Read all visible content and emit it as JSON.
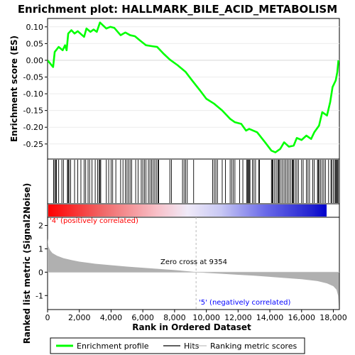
{
  "chart_data": {
    "type": "line",
    "title": "Enrichment plot: HALLMARK_BILE_ACID_METABOLISM",
    "es_panel": {
      "ylabel": "Enrichment score (ES)",
      "yticks": [
        0.1,
        0.05,
        0.0,
        -0.05,
        -0.1,
        -0.15,
        -0.2,
        -0.25
      ],
      "ylim": [
        -0.295,
        0.125
      ],
      "es_curve": [
        {
          "x": 0,
          "y": 0.0
        },
        {
          "x": 350,
          "y": -0.02
        },
        {
          "x": 450,
          "y": 0.025
        },
        {
          "x": 700,
          "y": 0.04
        },
        {
          "x": 950,
          "y": 0.03
        },
        {
          "x": 1100,
          "y": 0.045
        },
        {
          "x": 1200,
          "y": 0.03
        },
        {
          "x": 1300,
          "y": 0.08
        },
        {
          "x": 1500,
          "y": 0.09
        },
        {
          "x": 1700,
          "y": 0.08
        },
        {
          "x": 1900,
          "y": 0.087
        },
        {
          "x": 2300,
          "y": 0.07
        },
        {
          "x": 2450,
          "y": 0.095
        },
        {
          "x": 2700,
          "y": 0.085
        },
        {
          "x": 2900,
          "y": 0.092
        },
        {
          "x": 3100,
          "y": 0.085
        },
        {
          "x": 3300,
          "y": 0.113
        },
        {
          "x": 3700,
          "y": 0.095
        },
        {
          "x": 3950,
          "y": 0.1
        },
        {
          "x": 4200,
          "y": 0.097
        },
        {
          "x": 4600,
          "y": 0.075
        },
        {
          "x": 4900,
          "y": 0.083
        },
        {
          "x": 5200,
          "y": 0.075
        },
        {
          "x": 5500,
          "y": 0.072
        },
        {
          "x": 5800,
          "y": 0.06
        },
        {
          "x": 6200,
          "y": 0.045
        },
        {
          "x": 6600,
          "y": 0.042
        },
        {
          "x": 6900,
          "y": 0.04
        },
        {
          "x": 7300,
          "y": 0.02
        },
        {
          "x": 7700,
          "y": 0.002
        },
        {
          "x": 8200,
          "y": -0.015
        },
        {
          "x": 8700,
          "y": -0.035
        },
        {
          "x": 9100,
          "y": -0.06
        },
        {
          "x": 9600,
          "y": -0.09
        },
        {
          "x": 10000,
          "y": -0.115
        },
        {
          "x": 10500,
          "y": -0.13
        },
        {
          "x": 11000,
          "y": -0.15
        },
        {
          "x": 11500,
          "y": -0.175
        },
        {
          "x": 11800,
          "y": -0.185
        },
        {
          "x": 12200,
          "y": -0.19
        },
        {
          "x": 12500,
          "y": -0.21
        },
        {
          "x": 12700,
          "y": -0.205
        },
        {
          "x": 13200,
          "y": -0.215
        },
        {
          "x": 13700,
          "y": -0.245
        },
        {
          "x": 14100,
          "y": -0.27
        },
        {
          "x": 14350,
          "y": -0.275
        },
        {
          "x": 14650,
          "y": -0.265
        },
        {
          "x": 14900,
          "y": -0.245
        },
        {
          "x": 15200,
          "y": -0.258
        },
        {
          "x": 15500,
          "y": -0.255
        },
        {
          "x": 15700,
          "y": -0.232
        },
        {
          "x": 16000,
          "y": -0.238
        },
        {
          "x": 16300,
          "y": -0.225
        },
        {
          "x": 16600,
          "y": -0.235
        },
        {
          "x": 16800,
          "y": -0.215
        },
        {
          "x": 17100,
          "y": -0.195
        },
        {
          "x": 17300,
          "y": -0.155
        },
        {
          "x": 17600,
          "y": -0.165
        },
        {
          "x": 17800,
          "y": -0.125
        },
        {
          "x": 17950,
          "y": -0.08
        },
        {
          "x": 18150,
          "y": -0.06
        },
        {
          "x": 18250,
          "y": -0.035
        },
        {
          "x": 18320,
          "y": 0.0
        }
      ]
    },
    "hits": [
      380,
      450,
      520,
      560,
      700,
      900,
      1000,
      1250,
      1300,
      1350,
      1450,
      1700,
      1900,
      2100,
      2300,
      2400,
      2550,
      2650,
      2800,
      3000,
      3150,
      3250,
      3300,
      3350,
      3700,
      3850,
      4000,
      4100,
      4300,
      4600,
      4750,
      4900,
      5000,
      5100,
      5200,
      5300,
      5550,
      5700,
      5900,
      6000,
      6100,
      6200,
      6350,
      6450,
      6550,
      6650,
      6750,
      6850,
      6950,
      7000,
      7700,
      7800,
      8500,
      8600,
      8700,
      8800,
      9200,
      10400,
      10500,
      10600,
      10700,
      11000,
      11200,
      11500,
      11600,
      11700,
      11800,
      12100,
      12300,
      12550,
      12600,
      12650,
      12700,
      12750,
      12900,
      13000,
      13100,
      13300,
      13350,
      14100,
      14150,
      14200,
      14300,
      14400,
      14500,
      14550,
      14600,
      14700,
      14800,
      14900,
      15000,
      15100,
      15200,
      15300,
      15400,
      15450,
      15500,
      15600,
      15700,
      15800,
      16000,
      16100,
      16300,
      16400,
      16500,
      16700,
      16800,
      17000,
      17050,
      17100,
      17200,
      17300,
      17400,
      17500,
      17700,
      17850,
      17900,
      18000,
      18100,
      18150,
      18200,
      18250,
      18300
    ],
    "metric_panel": {
      "ylabel": "Ranked list metric (Signal2Noise)",
      "xlabel": "Rank in Ordered Dataset",
      "xticks": [
        0,
        2000,
        4000,
        6000,
        8000,
        10000,
        12000,
        14000,
        16000,
        18000
      ],
      "xtick_labels": [
        "0",
        "2,000",
        "4,000",
        "6,000",
        "8,000",
        "10,000",
        "12,000",
        "14,000",
        "16,000",
        "18,000"
      ],
      "yticks": [
        2,
        1,
        0,
        -1
      ],
      "ylim": [
        -1.6,
        2.35
      ],
      "metric_curve": [
        {
          "x": 0,
          "y": 1.45
        },
        {
          "x": 50,
          "y": 1.1
        },
        {
          "x": 150,
          "y": 0.95
        },
        {
          "x": 300,
          "y": 0.82
        },
        {
          "x": 600,
          "y": 0.7
        },
        {
          "x": 1000,
          "y": 0.6
        },
        {
          "x": 1500,
          "y": 0.52
        },
        {
          "x": 2000,
          "y": 0.45
        },
        {
          "x": 3000,
          "y": 0.36
        },
        {
          "x": 4000,
          "y": 0.3
        },
        {
          "x": 5000,
          "y": 0.24
        },
        {
          "x": 6000,
          "y": 0.19
        },
        {
          "x": 7000,
          "y": 0.14
        },
        {
          "x": 8000,
          "y": 0.09
        },
        {
          "x": 9000,
          "y": 0.03
        },
        {
          "x": 9354,
          "y": 0.0
        },
        {
          "x": 10000,
          "y": -0.03
        },
        {
          "x": 11000,
          "y": -0.07
        },
        {
          "x": 12000,
          "y": -0.11
        },
        {
          "x": 13000,
          "y": -0.15
        },
        {
          "x": 14000,
          "y": -0.2
        },
        {
          "x": 15000,
          "y": -0.25
        },
        {
          "x": 16000,
          "y": -0.3
        },
        {
          "x": 17000,
          "y": -0.38
        },
        {
          "x": 17600,
          "y": -0.48
        },
        {
          "x": 18000,
          "y": -0.6
        },
        {
          "x": 18200,
          "y": -0.75
        },
        {
          "x": 18300,
          "y": -1.0
        },
        {
          "x": 18350,
          "y": -1.55
        }
      ],
      "zero_cross_label": "Zero cross at 9354",
      "zero_cross_rank": 9354,
      "pos_label": "'4' (positively correlated)",
      "neg_label": "'5' (negatively correlated)"
    },
    "xlim": [
      0,
      18380
    ],
    "colors": {
      "es_line": "#00ff00",
      "pos_label": "#ff0000",
      "neg_label": "#0000ff",
      "hit": "#000000",
      "metric_fill": "#b0b0b0",
      "zero_line": "#c0c0c0"
    },
    "legend": {
      "position": "bottom",
      "items": [
        {
          "label": "Enrichment profile",
          "color": "#00ff00"
        },
        {
          "label": "Hits",
          "color": "#000000"
        },
        {
          "label": "Ranking metric scores",
          "color": "#c0c0c0"
        }
      ]
    }
  }
}
